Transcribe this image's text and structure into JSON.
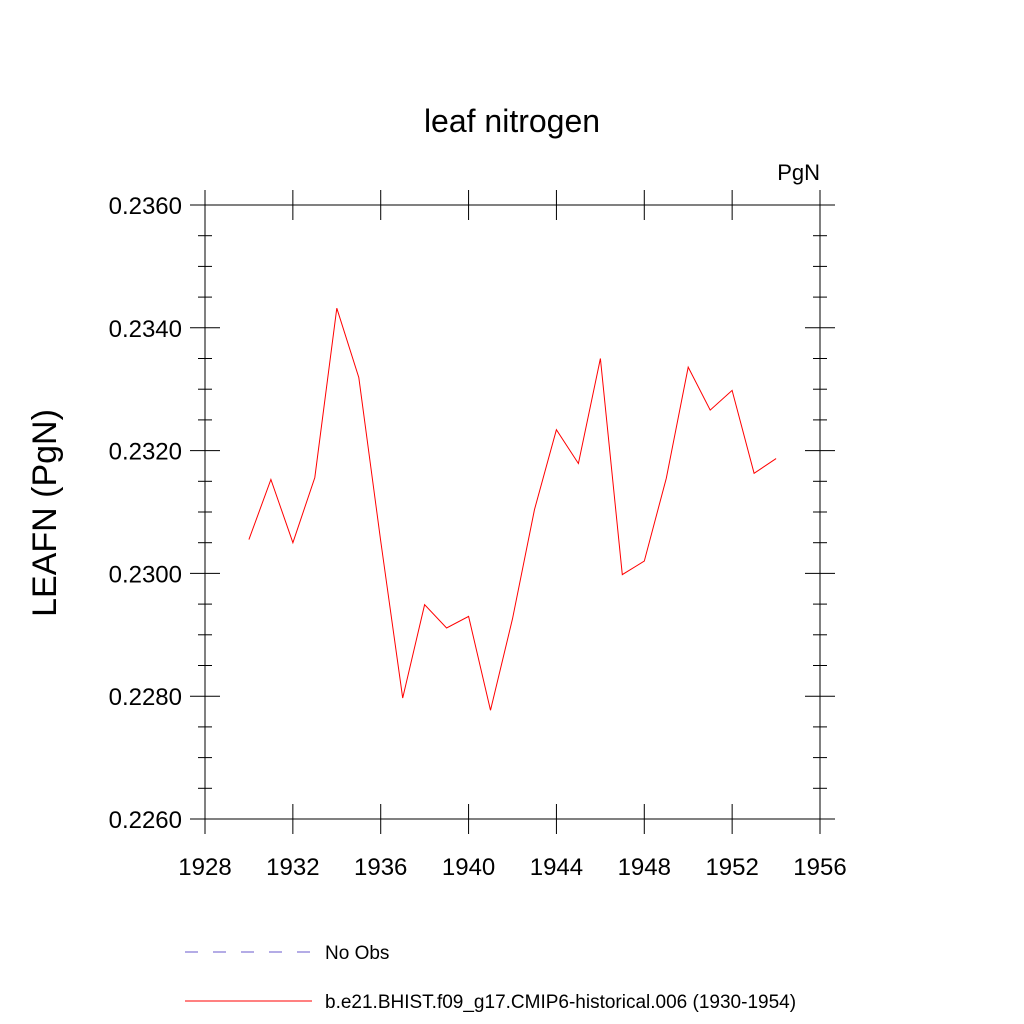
{
  "chart_data": {
    "type": "line",
    "title": "leaf nitrogen",
    "units": "PgN",
    "xlabel": "",
    "ylabel": "LEAFN  (PgN)",
    "xlim": [
      1928,
      1956
    ],
    "ylim": [
      0.226,
      0.236
    ],
    "xticks": [
      1928,
      1932,
      1936,
      1940,
      1944,
      1948,
      1952,
      1956
    ],
    "xtick_labels": [
      "1928",
      "1932",
      "1936",
      "1940",
      "1944",
      "1948",
      "1952",
      "1956"
    ],
    "yticks": [
      0.226,
      0.228,
      0.23,
      0.232,
      0.234,
      0.236
    ],
    "ytick_labels": [
      "0.2260",
      "0.2280",
      "0.2300",
      "0.2320",
      "0.2340",
      "0.2360"
    ],
    "grid": false,
    "legend_position": "bottom",
    "series": [
      {
        "name": "b.e21.BHIST.f09_g17.CMIP6-historical.006 (1930-1954)",
        "color": "#ff0000",
        "style": "solid",
        "x": [
          1930,
          1931,
          1932,
          1933,
          1934,
          1935,
          1936,
          1937,
          1938,
          1939,
          1940,
          1941,
          1942,
          1943,
          1944,
          1945,
          1946,
          1947,
          1948,
          1949,
          1950,
          1951,
          1952,
          1953,
          1954
        ],
        "y": [
          0.23055,
          0.23153,
          0.2305,
          0.23156,
          0.23432,
          0.23319,
          0.23053,
          0.22797,
          0.22949,
          0.22911,
          0.2293,
          0.22777,
          0.22926,
          0.23104,
          0.23234,
          0.23179,
          0.2335,
          0.22998,
          0.2302,
          0.23155,
          0.23336,
          0.23266,
          0.23298,
          0.23163,
          0.23187
        ]
      }
    ],
    "legend": [
      {
        "label": "No Obs",
        "color": "#6a5acd",
        "style": "dashed"
      },
      {
        "label": "b.e21.BHIST.f09_g17.CMIP6-historical.006 (1930-1954)",
        "color": "#ff0000",
        "style": "solid"
      }
    ]
  }
}
